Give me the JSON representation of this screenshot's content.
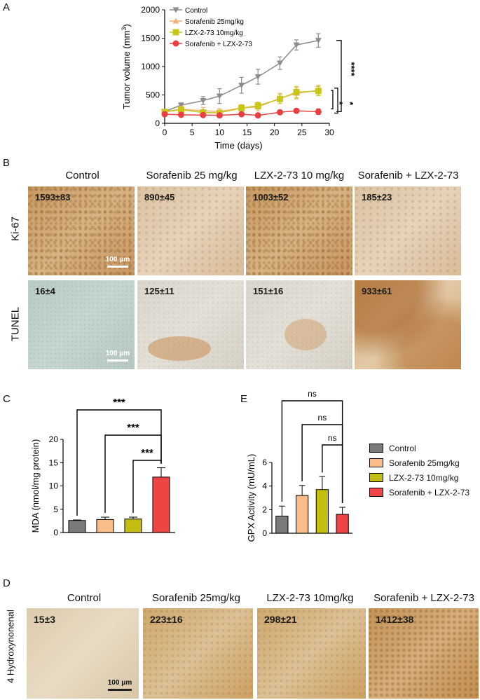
{
  "panels": {
    "a": {
      "letter": "A"
    },
    "b": {
      "letter": "B"
    },
    "c": {
      "letter": "C"
    },
    "d": {
      "letter": "D"
    },
    "e": {
      "letter": "E"
    }
  },
  "chart_data": [
    {
      "panel": "A",
      "type": "line",
      "xlabel": "Time (days)",
      "ylabel": "Tumor volume (mm3)",
      "xlim": [
        0,
        30
      ],
      "ylim": [
        0,
        2000
      ],
      "xticks": [
        0,
        5,
        10,
        15,
        20,
        25,
        30
      ],
      "yticks": [
        0,
        500,
        1000,
        1500,
        2000
      ],
      "legend_position": "top-left",
      "series": [
        {
          "name": "Control",
          "color": "#8c8c8c",
          "marker": "triangle-down",
          "x": [
            0,
            3,
            7,
            10,
            14,
            17,
            21,
            24,
            28
          ],
          "y": [
            210,
            320,
            400,
            480,
            670,
            820,
            1060,
            1380,
            1460
          ],
          "err": [
            30,
            40,
            70,
            130,
            140,
            130,
            110,
            90,
            120
          ]
        },
        {
          "name": "Sorafenib 25mg/kg",
          "color": "#f4b078",
          "marker": "triangle-up",
          "x": [
            0,
            3,
            7,
            10,
            14,
            17,
            21,
            24,
            28
          ],
          "y": [
            205,
            250,
            220,
            210,
            270,
            290,
            440,
            530,
            580
          ],
          "err": [
            30,
            50,
            60,
            50,
            60,
            70,
            90,
            100,
            90
          ]
        },
        {
          "name": "LZX-2-73 10mg/kg",
          "color": "#c9c61a",
          "marker": "square",
          "x": [
            0,
            3,
            7,
            10,
            14,
            17,
            21,
            24,
            28
          ],
          "y": [
            200,
            240,
            190,
            185,
            270,
            310,
            430,
            550,
            570
          ],
          "err": [
            30,
            50,
            40,
            40,
            50,
            60,
            80,
            100,
            80
          ]
        },
        {
          "name": "Sorafenib + LZX-2-73",
          "color": "#e84040",
          "marker": "circle",
          "x": [
            0,
            3,
            7,
            10,
            14,
            17,
            21,
            24,
            28
          ],
          "y": [
            160,
            150,
            145,
            140,
            160,
            140,
            195,
            220,
            205
          ],
          "err": [
            20,
            20,
            20,
            20,
            20,
            20,
            20,
            30,
            50
          ]
        }
      ],
      "annotations": [
        "****",
        "*",
        "*"
      ]
    },
    {
      "panel": "C",
      "type": "bar",
      "ylabel": "MDA (nmol/mg protein)",
      "ylim": [
        0,
        20
      ],
      "yticks": [
        0,
        5,
        10,
        15,
        20
      ],
      "categories": [
        "Control",
        "Sorafenib 25mg/kg",
        "LZX-2-73 10mg/kg",
        "Sorafenib + LZX-2-73"
      ],
      "values": [
        2.6,
        2.8,
        2.9,
        11.9
      ],
      "errors": [
        0.1,
        0.5,
        0.4,
        2.0
      ],
      "colors": [
        "#7a7a7a",
        "#f9bd8a",
        "#c3bd12",
        "#ef4444"
      ],
      "annotations": [
        "***",
        "***",
        "***"
      ]
    },
    {
      "panel": "E",
      "type": "bar",
      "ylabel": "GPX Activity (mU/mL)",
      "ylim": [
        0,
        6
      ],
      "yticks": [
        0,
        2,
        4,
        6
      ],
      "categories": [
        "Control",
        "Sorafenib 25mg/kg",
        "LZX-2-73 10mg/kg",
        "Sorafenib + LZX-2-73"
      ],
      "values": [
        1.45,
        3.2,
        3.7,
        1.6
      ],
      "errors": [
        0.85,
        0.85,
        1.1,
        0.6
      ],
      "colors": [
        "#7a7a7a",
        "#f9bd8a",
        "#c3bd12",
        "#ef4444"
      ],
      "annotations": [
        "ns",
        "ns",
        "ns"
      ],
      "legend_position": "right",
      "legend": [
        "Control",
        "Sorafenib 25mg/kg",
        "LZX-2-73 10mg/kg",
        "Sorafenib + LZX-2-73"
      ]
    }
  ],
  "panel_b": {
    "columns": [
      "Control",
      "Sorafenib 25 mg/kg",
      "LZX-2-73 10 mg/kg",
      "Sorafenib + LZX-2-73"
    ],
    "rows": [
      {
        "label": "Ki-67",
        "counts": [
          "1593±83",
          "890±45",
          "1003±52",
          "185±23"
        ]
      },
      {
        "label": "TUNEL",
        "counts": [
          "16±4",
          "125±11",
          "151±16",
          "933±61"
        ]
      }
    ],
    "scale_bar": "100 μm"
  },
  "panel_d": {
    "columns": [
      "Control",
      "Sorafenib 25mg/kg",
      "LZX-2-73  10mg/kg",
      "Sorafenib + LZX-2-73"
    ],
    "row_label": "4 Hydroxynonenal",
    "counts": [
      "15±3",
      "223±16",
      "298±21",
      "1412±38"
    ],
    "scale_bar": "100 μm"
  },
  "colors": {
    "control": "#8c8c8c",
    "sorafenib": "#f4b078",
    "lzx": "#c9c61a",
    "combo": "#e84040"
  }
}
